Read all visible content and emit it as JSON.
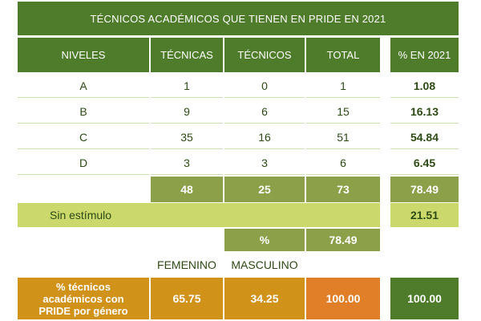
{
  "title": "TÉCNICOS ACADÉMICOS QUE TIENEN EN PRIDE EN 2021",
  "headers": {
    "niveles": "NIVELES",
    "tecnicas": "TÉCNICAS",
    "tecnicos": "TÉCNICOS",
    "total": "TOTAL",
    "pct_2021": "% EN 2021"
  },
  "rows": [
    {
      "nivel": "A",
      "tecnicas": "1",
      "tecnicos": "0",
      "total": "1",
      "pct": "1.08"
    },
    {
      "nivel": "B",
      "tecnicas": "9",
      "tecnicos": "6",
      "total": "15",
      "pct": "16.13"
    },
    {
      "nivel": "C",
      "tecnicas": "35",
      "tecnicos": "16",
      "total": "51",
      "pct": "54.84"
    },
    {
      "nivel": "D",
      "tecnicas": "3",
      "tecnicos": "3",
      "total": "6",
      "pct": "6.45"
    }
  ],
  "sums": {
    "tecnicas": "48",
    "tecnicos": "25",
    "total": "73",
    "pct": "78.49"
  },
  "sin_estimulo": {
    "label": "Sin estímulo",
    "pct": "21.51"
  },
  "pct_row": {
    "label": "%",
    "value": "78.49"
  },
  "gender": {
    "femenino": "FEMENINO",
    "masculino": "MASCULINO"
  },
  "gender_row": {
    "label": "% técnicos académicos con PRIDE por género",
    "femenino": "65.75",
    "masculino": "34.25",
    "total": "100.00",
    "grand_total": "100.00"
  },
  "colors": {
    "dark_green": "#4e7c2a",
    "olive": "#8ca04a",
    "lime": "#cbd86b",
    "mustard": "#d1921a",
    "orange": "#e07f28"
  }
}
